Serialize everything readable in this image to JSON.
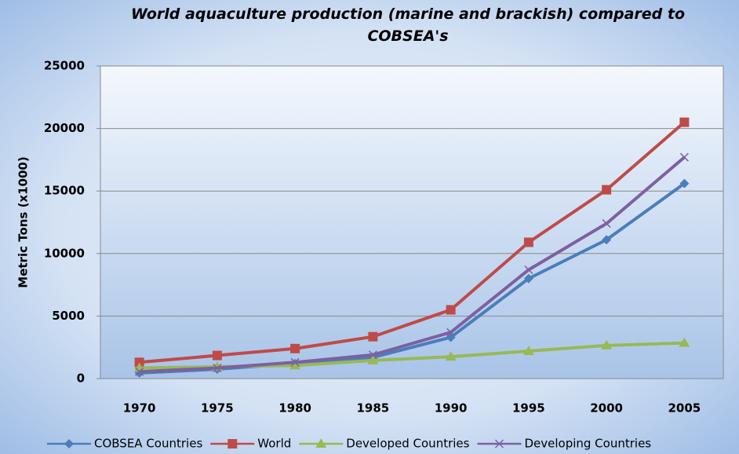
{
  "chart_data": {
    "type": "line",
    "title": "World aquaculture production (marine and brackish) compared to COBSEA's",
    "y_label": "Metric Tons (x1000)",
    "categories": [
      "1970",
      "1975",
      "1980",
      "1985",
      "1990",
      "1995",
      "2000",
      "2005"
    ],
    "series": [
      {
        "name": "COBSEA Countries",
        "color": "#4a7ebb",
        "marker": "diamond",
        "values": [
          450,
          750,
          1200,
          1700,
          3300,
          8000,
          11100,
          15600
        ]
      },
      {
        "name": "World",
        "color": "#be4b48",
        "marker": "square",
        "values": [
          1300,
          1850,
          2400,
          3350,
          5500,
          10900,
          15100,
          20500
        ]
      },
      {
        "name": "Developed Countries",
        "color": "#98b954",
        "marker": "triangle",
        "values": [
          850,
          950,
          1050,
          1450,
          1750,
          2200,
          2650,
          2850
        ]
      },
      {
        "name": "Developing Countries",
        "color": "#7d60a0",
        "marker": "x",
        "values": [
          550,
          850,
          1300,
          1900,
          3700,
          8700,
          12400,
          17700
        ]
      }
    ],
    "ylim": [
      0,
      25000
    ],
    "yticks": [
      0,
      5000,
      10000,
      15000,
      20000,
      25000
    ],
    "grid": true,
    "legend": "bottom"
  }
}
